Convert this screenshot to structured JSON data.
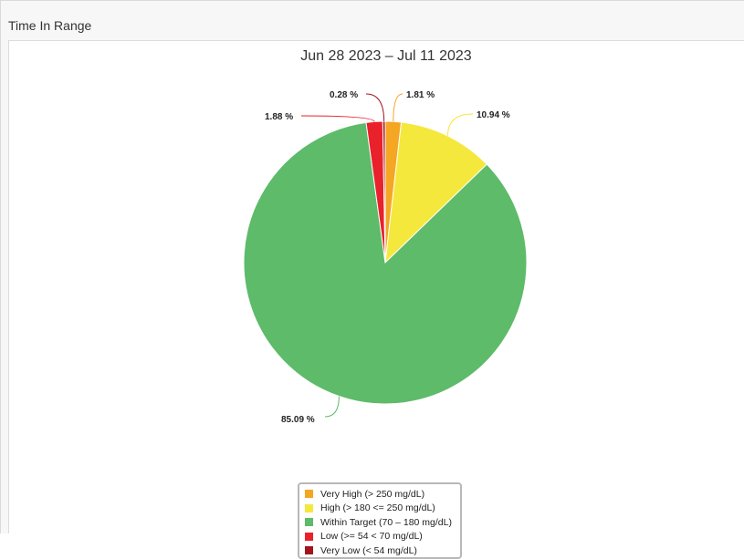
{
  "panel": {
    "title": "Time In Range"
  },
  "chart_data": {
    "type": "pie",
    "title": "Jun 28 2023 – Jul 11 2023",
    "slices": [
      {
        "label": "Very High (> 250 mg/dL)",
        "value": 1.81,
        "value_label": "1.81 %",
        "color": "#f5a623"
      },
      {
        "label": "High (> 180 <= 250 mg/dL)",
        "value": 10.94,
        "value_label": "10.94 %",
        "color": "#f5e83c"
      },
      {
        "label": "Within Target (70 – 180 mg/dL)",
        "value": 85.09,
        "value_label": "85.09 %",
        "color": "#5dbb69"
      },
      {
        "label": "Low (>= 54 < 70 mg/dL)",
        "value": 1.88,
        "value_label": "1.88 %",
        "color": "#e8212b"
      },
      {
        "label": "Very Low (< 54 mg/dL)",
        "value": 0.28,
        "value_label": "0.28 %",
        "color": "#a3141d"
      }
    ],
    "legend_position": "bottom"
  }
}
